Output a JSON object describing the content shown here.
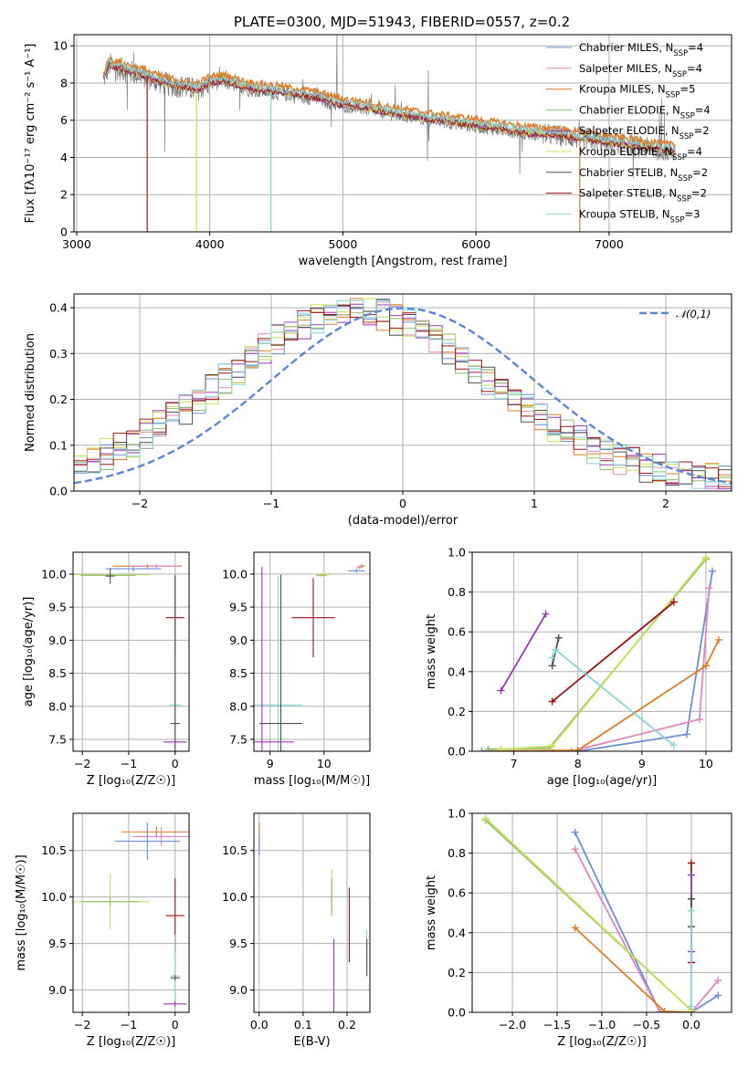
{
  "figure": {
    "title": "PLATE=0300, MJD=51943, FIBERID=0557, z=0.2"
  },
  "colors": {
    "cm": "#6a8fd6",
    "sm": "#e087be",
    "km": "#e07c26",
    "ce": "#8fbf6a",
    "se": "#9a3ab0",
    "ke": "#c8e05a",
    "cs": "#505050",
    "ss": "#a01418",
    "ks": "#86d6d6"
  },
  "chart_data": [
    {
      "id": "spectrum",
      "type": "line",
      "xlabel": "wavelength [Angstrom, rest frame]",
      "ylabel": "Flux [fλ10⁻¹⁷ erg cm⁻² s⁻¹ A⁻¹]",
      "xlim": [
        2980,
        7920
      ],
      "ylim": [
        0,
        10.6
      ],
      "xticks": [
        3000,
        4000,
        5000,
        6000,
        7000
      ],
      "yticks": [
        0,
        2,
        4,
        6,
        8,
        10
      ],
      "legend_position": "top-right",
      "legend": [
        {
          "name": "Chabrier MILES, N",
          "sub": "SSP",
          "val": "=4",
          "color": "cm"
        },
        {
          "name": "Salpeter MILES, N",
          "sub": "SSP",
          "val": "=4",
          "color": "sm"
        },
        {
          "name": "Kroupa MILES, N",
          "sub": "SSP",
          "val": "=5",
          "color": "km"
        },
        {
          "name": "Chabrier ELODIE, N",
          "sub": "SSP",
          "val": "=4",
          "color": "ce"
        },
        {
          "name": "Salpeter ELODIE, N",
          "sub": "SSP",
          "val": "=2",
          "color": "se"
        },
        {
          "name": "Kroupa ELODIE, N",
          "sub": "SSP",
          "val": "=4",
          "color": "ke"
        },
        {
          "name": "Chabrier STELIB, N",
          "sub": "SSP",
          "val": "=2",
          "color": "cs"
        },
        {
          "name": "Salpeter STELIB, N",
          "sub": "SSP",
          "val": "=2",
          "color": "ss"
        },
        {
          "name": "Kroupa STELIB, N",
          "sub": "SSP",
          "val": "=3",
          "color": "ks"
        }
      ],
      "model_continuum": {
        "x": [
          3200,
          3250,
          3300,
          3400,
          3500,
          3600,
          3700,
          3800,
          3900,
          4000,
          4100,
          4200,
          4300,
          4400,
          4500,
          4600,
          4700,
          4800,
          4900,
          5000,
          5200,
          5400,
          5600,
          5800,
          6000,
          6200,
          6400,
          6600,
          6800,
          7000,
          7200,
          7400,
          7500
        ],
        "y": [
          8.2,
          9.0,
          8.8,
          8.6,
          8.4,
          8.1,
          7.9,
          7.8,
          7.6,
          8.0,
          8.1,
          7.9,
          7.7,
          7.6,
          7.5,
          7.4,
          7.3,
          7.2,
          7.0,
          6.8,
          6.6,
          6.3,
          6.1,
          5.9,
          5.7,
          5.5,
          5.3,
          5.2,
          5.0,
          4.8,
          4.6,
          4.4,
          4.3
        ]
      },
      "model_dropouts": [
        {
          "x": 3530,
          "color": "ss"
        },
        {
          "x": 3900,
          "color": "ke"
        },
        {
          "x": 4460,
          "color": "ks"
        },
        {
          "x": 6780,
          "color": "km"
        }
      ]
    },
    {
      "id": "residuals",
      "type": "line",
      "xlabel": "(data-model)/error",
      "ylabel": "Normed distribution",
      "xlim": [
        -2.5,
        2.5
      ],
      "ylim": [
        0,
        0.43
      ],
      "xticks": [
        -2,
        -1,
        0,
        1,
        2
      ],
      "yticks": [
        0.0,
        0.1,
        0.2,
        0.3,
        0.4
      ],
      "legend_position": "top-right",
      "gaussian_label": "𝒩(0,1)",
      "bin_width": 0.1
    },
    {
      "id": "age_vs_Z",
      "type": "scatter",
      "xlabel": "Z [log₁₀(Z/Z☉)]",
      "ylabel": "age  [log₁₀(age/yr)]",
      "xlim": [
        -2.2,
        0.3
      ],
      "ylim": [
        7.32,
        10.33
      ],
      "xticks": [
        -2,
        -1,
        0
      ],
      "yticks": [
        7.5,
        8.0,
        8.5,
        9.0,
        9.5,
        10.0
      ],
      "points": [
        {
          "c": "km",
          "x": -0.6,
          "y": 10.12,
          "xe": 0.75,
          "ye": 0.03
        },
        {
          "c": "sm",
          "x": -0.4,
          "y": 10.12,
          "xe": 0.5,
          "ye": 0.03
        },
        {
          "c": "cm",
          "x": -0.9,
          "y": 10.08,
          "xe": 0.6,
          "ye": 0.04
        },
        {
          "c": "ke",
          "x": -1.4,
          "y": 9.99,
          "xe": 0.85,
          "ye": 0.02
        },
        {
          "c": "ce",
          "x": -1.45,
          "y": 9.98,
          "xe": 0.6,
          "ye": 0.02
        },
        {
          "c": "cs",
          "x": -1.4,
          "y": 9.97,
          "xe": 0.1,
          "ye": 0.12
        },
        {
          "c": "ss",
          "x": 0.0,
          "y": 9.34,
          "xe": 0.2,
          "ye": 0.6
        },
        {
          "c": "ks",
          "x": 0.0,
          "y": 8.02,
          "xe": 0.12,
          "ye": 1.95
        },
        {
          "c": "cs",
          "x": 0.0,
          "y": 7.74,
          "xe": 0.1,
          "ye": 2.25
        },
        {
          "c": "se",
          "x": 0.0,
          "y": 7.46,
          "xe": 0.25,
          "ye": 0.02
        }
      ]
    },
    {
      "id": "age_vs_mass",
      "type": "scatter",
      "xlabel": "mass [log₁₀(M/M☉)]",
      "ylabel": "",
      "xlim": [
        8.7,
        10.85
      ],
      "ylim": [
        7.32,
        10.33
      ],
      "xticks": [
        9,
        10
      ],
      "yticks": [
        7.5,
        8.0,
        8.5,
        9.0,
        9.5,
        10.0
      ],
      "points": [
        {
          "c": "km",
          "x": 10.7,
          "y": 10.12,
          "xe": 0.06,
          "ye": 0.03
        },
        {
          "c": "sm",
          "x": 10.65,
          "y": 10.1,
          "xe": 0.05,
          "ye": 0.03
        },
        {
          "c": "cm",
          "x": 10.6,
          "y": 10.05,
          "xe": 0.15,
          "ye": 0.03
        },
        {
          "c": "ke",
          "x": 10.0,
          "y": 9.99,
          "xe": 0.12,
          "ye": 0.03
        },
        {
          "c": "ce",
          "x": 9.95,
          "y": 9.98,
          "xe": 0.1,
          "ye": 0.02
        },
        {
          "c": "ss",
          "x": 9.8,
          "y": 9.34,
          "xe": 0.4,
          "ye": 0.6
        },
        {
          "c": "ks",
          "x": 9.15,
          "y": 8.02,
          "xe": 0.45,
          "ye": 1.95
        },
        {
          "c": "cs",
          "x": 9.2,
          "y": 7.74,
          "xe": 0.4,
          "ye": 2.25
        },
        {
          "c": "se",
          "x": 8.85,
          "y": 7.46,
          "xe": 0.6,
          "ye": 2.65
        }
      ]
    },
    {
      "id": "mw_vs_age",
      "type": "line",
      "xlabel": "age  [log₁₀(age/yr)]",
      "ylabel": "mass weight",
      "xlim": [
        6.35,
        10.4
      ],
      "ylim": [
        0,
        1
      ],
      "xticks": [
        7,
        8,
        9,
        10
      ],
      "yticks": [
        0.0,
        0.2,
        0.4,
        0.6,
        0.8,
        1.0
      ],
      "series": [
        {
          "c": "cm",
          "x": [
            6.5,
            8.0,
            9.7,
            10.1
          ],
          "y": [
            0.0,
            0.0,
            0.085,
            0.905
          ]
        },
        {
          "c": "sm",
          "x": [
            6.6,
            7.9,
            9.9,
            10.05
          ],
          "y": [
            0.0,
            0.0,
            0.16,
            0.82
          ]
        },
        {
          "c": "km",
          "x": [
            6.6,
            8.0,
            10.0,
            10.2
          ],
          "y": [
            0.0,
            0.005,
            0.43,
            0.56
          ]
        },
        {
          "c": "ce",
          "x": [
            6.6,
            7.55,
            10.0
          ],
          "y": [
            0.01,
            0.015,
            0.965
          ]
        },
        {
          "c": "se",
          "x": [
            6.8,
            7.5
          ],
          "y": [
            0.305,
            0.69
          ]
        },
        {
          "c": "ke",
          "x": [
            6.8,
            7.6,
            10.0
          ],
          "y": [
            0.01,
            0.025,
            0.975
          ]
        },
        {
          "c": "cs",
          "x": [
            7.6,
            7.7
          ],
          "y": [
            0.43,
            0.57
          ]
        },
        {
          "c": "ss",
          "x": [
            7.6,
            9.5
          ],
          "y": [
            0.25,
            0.75
          ]
        },
        {
          "c": "ks",
          "x": [
            7.6,
            7.65,
            9.5
          ],
          "y": [
            0.47,
            0.51,
            0.03
          ]
        }
      ]
    },
    {
      "id": "mass_vs_Z",
      "type": "scatter",
      "xlabel": "Z [log₁₀(Z/Z☉)]",
      "ylabel": "mass [log₁₀(M/M☉)]",
      "xlim": [
        -2.2,
        0.3
      ],
      "ylim": [
        8.76,
        10.9
      ],
      "xticks": [
        -2,
        -1,
        0
      ],
      "yticks": [
        9.0,
        9.5,
        10.0,
        10.5
      ],
      "points": [
        {
          "c": "km",
          "x": -0.4,
          "y": 10.7,
          "xe": 0.75,
          "ye": 0.06
        },
        {
          "c": "sm",
          "x": -0.3,
          "y": 10.65,
          "xe": 0.6,
          "ye": 0.1
        },
        {
          "c": "cm",
          "x": -0.6,
          "y": 10.6,
          "xe": 0.7,
          "ye": 0.2
        },
        {
          "c": "ke",
          "x": -1.4,
          "y": 9.95,
          "xe": 0.85,
          "ye": 0.3
        },
        {
          "c": "ce",
          "x": -1.4,
          "y": 9.95,
          "xe": 0.6,
          "ye": 0.05
        },
        {
          "c": "ss",
          "x": 0.0,
          "y": 9.8,
          "xe": 0.2,
          "ye": 0.4
        },
        {
          "c": "ks",
          "x": 0.0,
          "y": 9.15,
          "xe": 0.1,
          "ye": 0.45
        },
        {
          "c": "cs",
          "x": 0.0,
          "y": 9.13,
          "xe": 0.1,
          "ye": 0.03
        },
        {
          "c": "se",
          "x": 0.0,
          "y": 8.85,
          "xe": 0.25,
          "ye": 0.03
        }
      ]
    },
    {
      "id": "mass_vs_ebv",
      "type": "scatter",
      "xlabel": "E(B-V)",
      "ylabel": "",
      "xlim": [
        -0.012,
        0.252
      ],
      "ylim": [
        8.76,
        10.9
      ],
      "xticks": [
        0.0,
        0.1,
        0.2
      ],
      "yticks": [
        9.0,
        9.5,
        10.0,
        10.5
      ],
      "points": [
        {
          "c": "km",
          "x": 0.0,
          "y": 10.65,
          "xe": 0,
          "ye": 0.15
        },
        {
          "c": "sm",
          "x": 0.0,
          "y": 10.6,
          "xe": 0,
          "ye": 0.1
        },
        {
          "c": "cm",
          "x": 0.0,
          "y": 10.55,
          "xe": 0,
          "ye": 0.1
        },
        {
          "c": "ke",
          "x": 0.165,
          "y": 10.05,
          "xe": 0,
          "ye": 0.25
        },
        {
          "c": "ce",
          "x": 0.165,
          "y": 10.0,
          "xe": 0,
          "ye": 0.2
        },
        {
          "c": "se",
          "x": 0.17,
          "y": 9.1,
          "xe": 0,
          "ye": 0.45
        },
        {
          "c": "ss",
          "x": 0.205,
          "y": 9.7,
          "xe": 0,
          "ye": 0.4
        },
        {
          "c": "ks",
          "x": 0.245,
          "y": 9.4,
          "xe": 0,
          "ye": 0.25
        },
        {
          "c": "cs",
          "x": 0.245,
          "y": 9.35,
          "xe": 0,
          "ye": 0.2
        }
      ]
    },
    {
      "id": "mw_vs_Z",
      "type": "line",
      "xlabel": "Z [log₁₀(Z/Z☉)]",
      "ylabel": "mass weight",
      "xlim": [
        -2.45,
        0.45
      ],
      "ylim": [
        0,
        1
      ],
      "xticks": [
        -2.0,
        -1.5,
        -1.0,
        -0.5,
        0.0
      ],
      "yticks": [
        0.0,
        0.2,
        0.4,
        0.6,
        0.8,
        1.0
      ],
      "series": [
        {
          "c": "cm",
          "x": [
            -1.3,
            -0.35,
            0.0,
            0.3
          ],
          "y": [
            0.905,
            0.0,
            0.0,
            0.085
          ]
        },
        {
          "c": "sm",
          "x": [
            -1.3,
            -0.35,
            0.0,
            0.3
          ],
          "y": [
            0.82,
            0.0,
            0.0,
            0.16
          ]
        },
        {
          "c": "km",
          "x": [
            -1.3,
            -0.3,
            0.0
          ],
          "y": [
            0.425,
            0.005,
            0.0
          ]
        },
        {
          "c": "ce",
          "x": [
            -2.3,
            0.0
          ],
          "y": [
            0.965,
            0.01
          ]
        },
        {
          "c": "ke",
          "x": [
            -2.3,
            0.0
          ],
          "y": [
            0.975,
            0.01
          ]
        },
        {
          "c": "ss",
          "x": [
            0.0,
            0.0
          ],
          "y": [
            0.25,
            0.75
          ]
        },
        {
          "c": "se",
          "x": [
            0.0,
            0.0
          ],
          "y": [
            0.305,
            0.69
          ]
        },
        {
          "c": "cs",
          "x": [
            0.0,
            0.0
          ],
          "y": [
            0.43,
            0.57
          ]
        },
        {
          "c": "ks",
          "x": [
            0.0,
            0.0
          ],
          "y": [
            0.03,
            0.51
          ]
        }
      ]
    }
  ]
}
